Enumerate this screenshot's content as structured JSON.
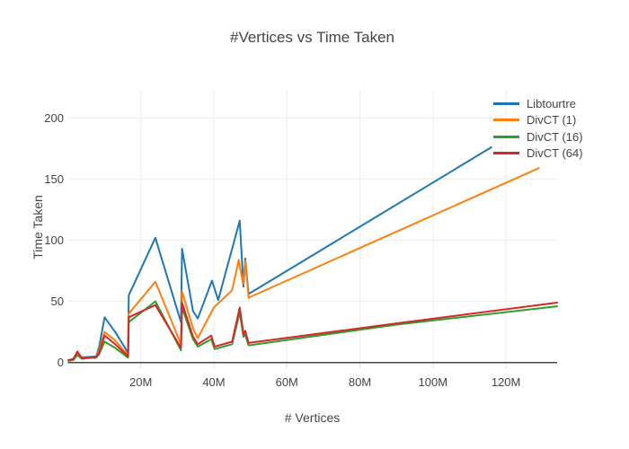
{
  "title": "#Vertices vs Time Taken",
  "axes": {
    "x_title": "# Vertices",
    "y_title": "Time Taken"
  },
  "colors": {
    "background": "#ffffff",
    "grid": "#eeeeee",
    "zeroline": "#444444",
    "text": "#444444",
    "tick_stub": "#dddddd"
  },
  "chart_data": {
    "type": "line",
    "title": "#Vertices vs Time Taken",
    "xlabel": "# Vertices",
    "ylabel": "Time Taken",
    "x_unit": "millions of vertices",
    "xlim": [
      0,
      134
    ],
    "ylim": [
      0,
      223
    ],
    "grid": true,
    "legend_position": "top-right-overlay",
    "x_ticks": [
      {
        "v": 20,
        "label": "20M"
      },
      {
        "v": 40,
        "label": "40M"
      },
      {
        "v": 60,
        "label": "60M"
      },
      {
        "v": 80,
        "label": "80M"
      },
      {
        "v": 100,
        "label": "100M"
      },
      {
        "v": 120,
        "label": "120M"
      }
    ],
    "y_ticks": [
      {
        "v": 0,
        "label": "0"
      },
      {
        "v": 50,
        "label": "50"
      },
      {
        "v": 100,
        "label": "100"
      },
      {
        "v": 150,
        "label": "150"
      },
      {
        "v": 200,
        "label": "200"
      }
    ],
    "series": [
      {
        "name": "Libtourtre",
        "color": "#1f77b4",
        "points": [
          [
            0.2,
            2
          ],
          [
            1.5,
            3
          ],
          [
            2.6,
            8
          ],
          [
            3.9,
            4
          ],
          [
            5.3,
            4.5
          ],
          [
            7.8,
            5
          ],
          [
            8.6,
            13
          ],
          [
            10.1,
            37
          ],
          [
            13,
            25
          ],
          [
            16.5,
            8
          ],
          [
            16.7,
            55
          ],
          [
            24,
            102
          ],
          [
            31,
            33
          ],
          [
            31.3,
            93
          ],
          [
            34.3,
            42
          ],
          [
            35.6,
            36
          ],
          [
            39.5,
            67
          ],
          [
            41.2,
            51
          ],
          [
            47.1,
            116
          ],
          [
            48.1,
            62
          ],
          [
            48.6,
            85
          ],
          [
            49.5,
            56
          ],
          [
            116,
            176
          ]
        ]
      },
      {
        "name": "DivCT (1)",
        "color": "#ff7f0e",
        "points": [
          [
            0.2,
            2
          ],
          [
            1.5,
            2.5
          ],
          [
            2.6,
            7
          ],
          [
            3.9,
            3.5
          ],
          [
            5.3,
            4
          ],
          [
            7.8,
            4.5
          ],
          [
            8.6,
            10
          ],
          [
            10.1,
            25
          ],
          [
            13,
            18
          ],
          [
            16.5,
            6
          ],
          [
            16.7,
            40
          ],
          [
            24,
            66
          ],
          [
            31,
            15
          ],
          [
            31.3,
            58
          ],
          [
            34.3,
            28
          ],
          [
            35.6,
            20
          ],
          [
            40,
            45
          ],
          [
            45,
            59
          ],
          [
            46.8,
            84
          ],
          [
            48,
            64
          ],
          [
            48.6,
            83
          ],
          [
            49.5,
            53
          ],
          [
            129,
            159
          ]
        ]
      },
      {
        "name": "DivCT (16)",
        "color": "#2ca02c",
        "points": [
          [
            0.2,
            1.5
          ],
          [
            1.5,
            2
          ],
          [
            2.6,
            6
          ],
          [
            3.9,
            3
          ],
          [
            5.3,
            3.5
          ],
          [
            7.8,
            4
          ],
          [
            8.6,
            7
          ],
          [
            10.1,
            17
          ],
          [
            13,
            12
          ],
          [
            16.5,
            4
          ],
          [
            16.7,
            33
          ],
          [
            24,
            50
          ],
          [
            31,
            10
          ],
          [
            31.3,
            45
          ],
          [
            34.3,
            19
          ],
          [
            35.6,
            13
          ],
          [
            39.3,
            19
          ],
          [
            40.2,
            11
          ],
          [
            45,
            15
          ],
          [
            47.1,
            41
          ],
          [
            48.1,
            21
          ],
          [
            48.6,
            23
          ],
          [
            49.5,
            14
          ],
          [
            90,
            31
          ],
          [
            134,
            46
          ]
        ]
      },
      {
        "name": "DivCT (64)",
        "color": "#d62728",
        "points": [
          [
            0.2,
            2
          ],
          [
            1.5,
            2.5
          ],
          [
            2.6,
            9
          ],
          [
            3.9,
            3.5
          ],
          [
            5.3,
            4
          ],
          [
            7.8,
            4.5
          ],
          [
            8.6,
            8
          ],
          [
            10.1,
            22
          ],
          [
            13,
            15
          ],
          [
            16.5,
            5
          ],
          [
            16.7,
            37
          ],
          [
            24,
            47
          ],
          [
            31,
            12
          ],
          [
            31.3,
            49
          ],
          [
            34.3,
            21
          ],
          [
            35.6,
            15
          ],
          [
            39.3,
            22
          ],
          [
            40.2,
            13
          ],
          [
            45,
            17
          ],
          [
            47.1,
            45
          ],
          [
            48.1,
            23
          ],
          [
            48.6,
            26
          ],
          [
            49.5,
            16
          ],
          [
            90,
            32
          ],
          [
            134,
            49
          ]
        ]
      }
    ]
  }
}
